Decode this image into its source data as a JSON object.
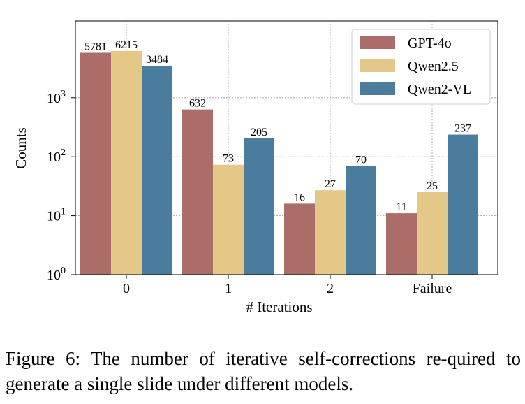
{
  "caption": "Figure 6: The number of iterative self-corrections re-quired to generate a single slide under different models.",
  "chart_data": {
    "type": "bar",
    "scale_y": "log",
    "ylim": [
      1,
      20000
    ],
    "yticks": [
      {
        "value": 1,
        "base": "10",
        "exp": "0"
      },
      {
        "value": 10,
        "base": "10",
        "exp": "1"
      },
      {
        "value": 100,
        "base": "10",
        "exp": "2"
      },
      {
        "value": 1000,
        "base": "10",
        "exp": "3"
      }
    ],
    "xlabel": "# Iterations",
    "ylabel": "Counts",
    "categories": [
      "0",
      "1",
      "2",
      "Failure"
    ],
    "series": [
      {
        "name": "GPT-4o",
        "color": "#ab6d67",
        "values": [
          5781,
          632,
          16,
          11
        ]
      },
      {
        "name": "Qwen2.5",
        "color": "#e3c888",
        "values": [
          6215,
          73,
          27,
          25
        ]
      },
      {
        "name": "Qwen2-VL",
        "color": "#4a7c9e",
        "values": [
          3484,
          205,
          70,
          237
        ]
      }
    ],
    "grid": true,
    "legend_position": "top-right"
  }
}
